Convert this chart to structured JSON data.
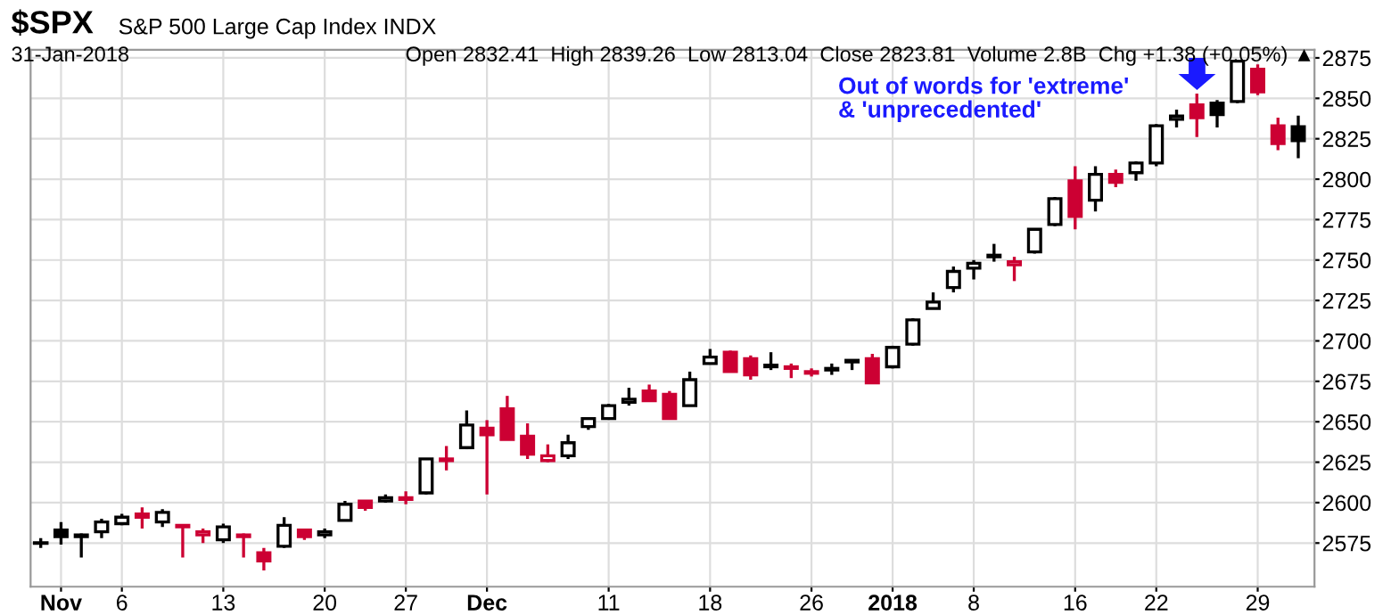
{
  "chart_data": {
    "type": "candlestick",
    "title": "$SPX",
    "subtitle": "S&P 500 Large Cap Index INDX",
    "annotations": [
      "31-Jan-2018",
      "Open 2832.41  High 2839.26  Low 2813.04  Close 2823.81  Volume 2.8B  Chg +1.38 (+0.05%) ▲",
      "Out of words for 'extreme'\n& 'unprecedented'"
    ],
    "categories": [
      null,
      "Nov",
      null,
      null,
      "6",
      null,
      null,
      null,
      null,
      "13",
      null,
      null,
      null,
      null,
      "20",
      null,
      null,
      null,
      "27",
      null,
      null,
      null,
      "Dec",
      null,
      null,
      null,
      null,
      null,
      "11",
      null,
      null,
      null,
      null,
      "18",
      null,
      null,
      null,
      null,
      "26",
      null,
      null,
      null,
      "2018",
      null,
      null,
      null,
      "8",
      null,
      null,
      null,
      null,
      "16",
      null,
      null,
      null,
      "22",
      null,
      null,
      null,
      null,
      "29",
      null,
      null
    ],
    "ohlc": [
      [
        2575,
        2578,
        2572,
        2575
      ],
      [
        2583,
        2588,
        2574,
        2579
      ],
      [
        2579,
        2581,
        2566,
        2580
      ],
      [
        2582,
        2590,
        2578,
        2588
      ],
      [
        2587,
        2593,
        2586,
        2591
      ],
      [
        2593,
        2597,
        2584,
        2591
      ],
      [
        2588,
        2596,
        2585,
        2594
      ],
      [
        2586,
        2586,
        2566,
        2585
      ],
      [
        2580,
        2584,
        2575,
        2582
      ],
      [
        2577,
        2587,
        2575,
        2585
      ],
      [
        2580,
        2581,
        2566,
        2579
      ],
      [
        2569,
        2572,
        2558,
        2564
      ],
      [
        2573,
        2591,
        2572,
        2586
      ],
      [
        2583,
        2584,
        2577,
        2579
      ],
      [
        2580,
        2584,
        2578,
        2582
      ],
      [
        2589,
        2601,
        2589,
        2599
      ],
      [
        2601,
        2601,
        2595,
        2597
      ],
      [
        2601,
        2605,
        2600,
        2603
      ],
      [
        2603,
        2607,
        2599,
        2602
      ],
      [
        2606,
        2627,
        2605,
        2627
      ],
      [
        2627,
        2635,
        2620,
        2626
      ],
      [
        2634,
        2657,
        2633,
        2648
      ],
      [
        2646,
        2651,
        2605,
        2642
      ],
      [
        2658,
        2666,
        2639,
        2639
      ],
      [
        2641,
        2649,
        2627,
        2630
      ],
      [
        2626,
        2636,
        2625,
        2629
      ],
      [
        2629,
        2642,
        2627,
        2637
      ],
      [
        2647,
        2652,
        2645,
        2652
      ],
      [
        2652,
        2661,
        2652,
        2660
      ],
      [
        2662,
        2671,
        2660,
        2664
      ],
      [
        2669,
        2673,
        2663,
        2663
      ],
      [
        2667,
        2669,
        2652,
        2652
      ],
      [
        2660,
        2681,
        2660,
        2676
      ],
      [
        2686,
        2695,
        2686,
        2690
      ],
      [
        2693,
        2694,
        2681,
        2681
      ],
      [
        2689,
        2691,
        2676,
        2679
      ],
      [
        2685,
        2693,
        2682,
        2684
      ],
      [
        2684,
        2686,
        2677,
        2683
      ],
      [
        2681,
        2683,
        2678,
        2680
      ],
      [
        2682,
        2686,
        2679,
        2683
      ],
      [
        2688,
        2688,
        2682,
        2687
      ],
      [
        2689,
        2692,
        2674,
        2674
      ],
      [
        2684,
        2697,
        2683,
        2696
      ],
      [
        2698,
        2714,
        2697,
        2713
      ],
      [
        2720,
        2730,
        2720,
        2724
      ],
      [
        2733,
        2746,
        2730,
        2743
      ],
      [
        2745,
        2750,
        2738,
        2748
      ],
      [
        2752,
        2760,
        2749,
        2753
      ],
      [
        2747,
        2752,
        2737,
        2749
      ],
      [
        2755,
        2769,
        2754,
        2769
      ],
      [
        2772,
        2789,
        2771,
        2788
      ],
      [
        2799,
        2808,
        2769,
        2777
      ],
      [
        2787,
        2808,
        2780,
        2803
      ],
      [
        2803,
        2806,
        2795,
        2798
      ],
      [
        2804,
        2811,
        2799,
        2810
      ],
      [
        2810,
        2834,
        2808,
        2833
      ],
      [
        2837,
        2843,
        2832,
        2839
      ],
      [
        2846,
        2853,
        2826,
        2838
      ],
      [
        2847,
        2849,
        2832,
        2840
      ],
      [
        2848,
        2873,
        2847,
        2873
      ],
      [
        2868,
        2871,
        2852,
        2854
      ],
      [
        2833,
        2838,
        2818,
        2822
      ],
      [
        2832.41,
        2839.26,
        2813.04,
        2823.81
      ]
    ],
    "colors": [
      "#000000",
      "#000000",
      "#000000",
      "#000000",
      "#000000",
      "#cc0033",
      "#000000",
      "#cc0033",
      "#cc0033",
      "#000000",
      "#cc0033",
      "#cc0033",
      "#000000",
      "#cc0033",
      "#000000",
      "#000000",
      "#cc0033",
      "#000000",
      "#cc0033",
      "#000000",
      "#cc0033",
      "#000000",
      "#cc0033",
      "#cc0033",
      "#cc0033",
      "#cc0033",
      "#000000",
      "#000000",
      "#000000",
      "#000000",
      "#cc0033",
      "#cc0033",
      "#000000",
      "#000000",
      "#cc0033",
      "#cc0033",
      "#000000",
      "#cc0033",
      "#cc0033",
      "#000000",
      "#000000",
      "#cc0033",
      "#000000",
      "#000000",
      "#000000",
      "#000000",
      "#000000",
      "#000000",
      "#cc0033",
      "#000000",
      "#000000",
      "#cc0033",
      "#000000",
      "#cc0033",
      "#000000",
      "#000000",
      "#000000",
      "#cc0033",
      "#000000",
      "#000000",
      "#cc0033",
      "#cc0033",
      "#000000"
    ],
    "ylim": [
      2548,
      2880
    ],
    "yticks": [
      2575,
      2600,
      2625,
      2650,
      2675,
      2700,
      2725,
      2750,
      2775,
      2800,
      2825,
      2850,
      2875
    ],
    "grid": true
  }
}
